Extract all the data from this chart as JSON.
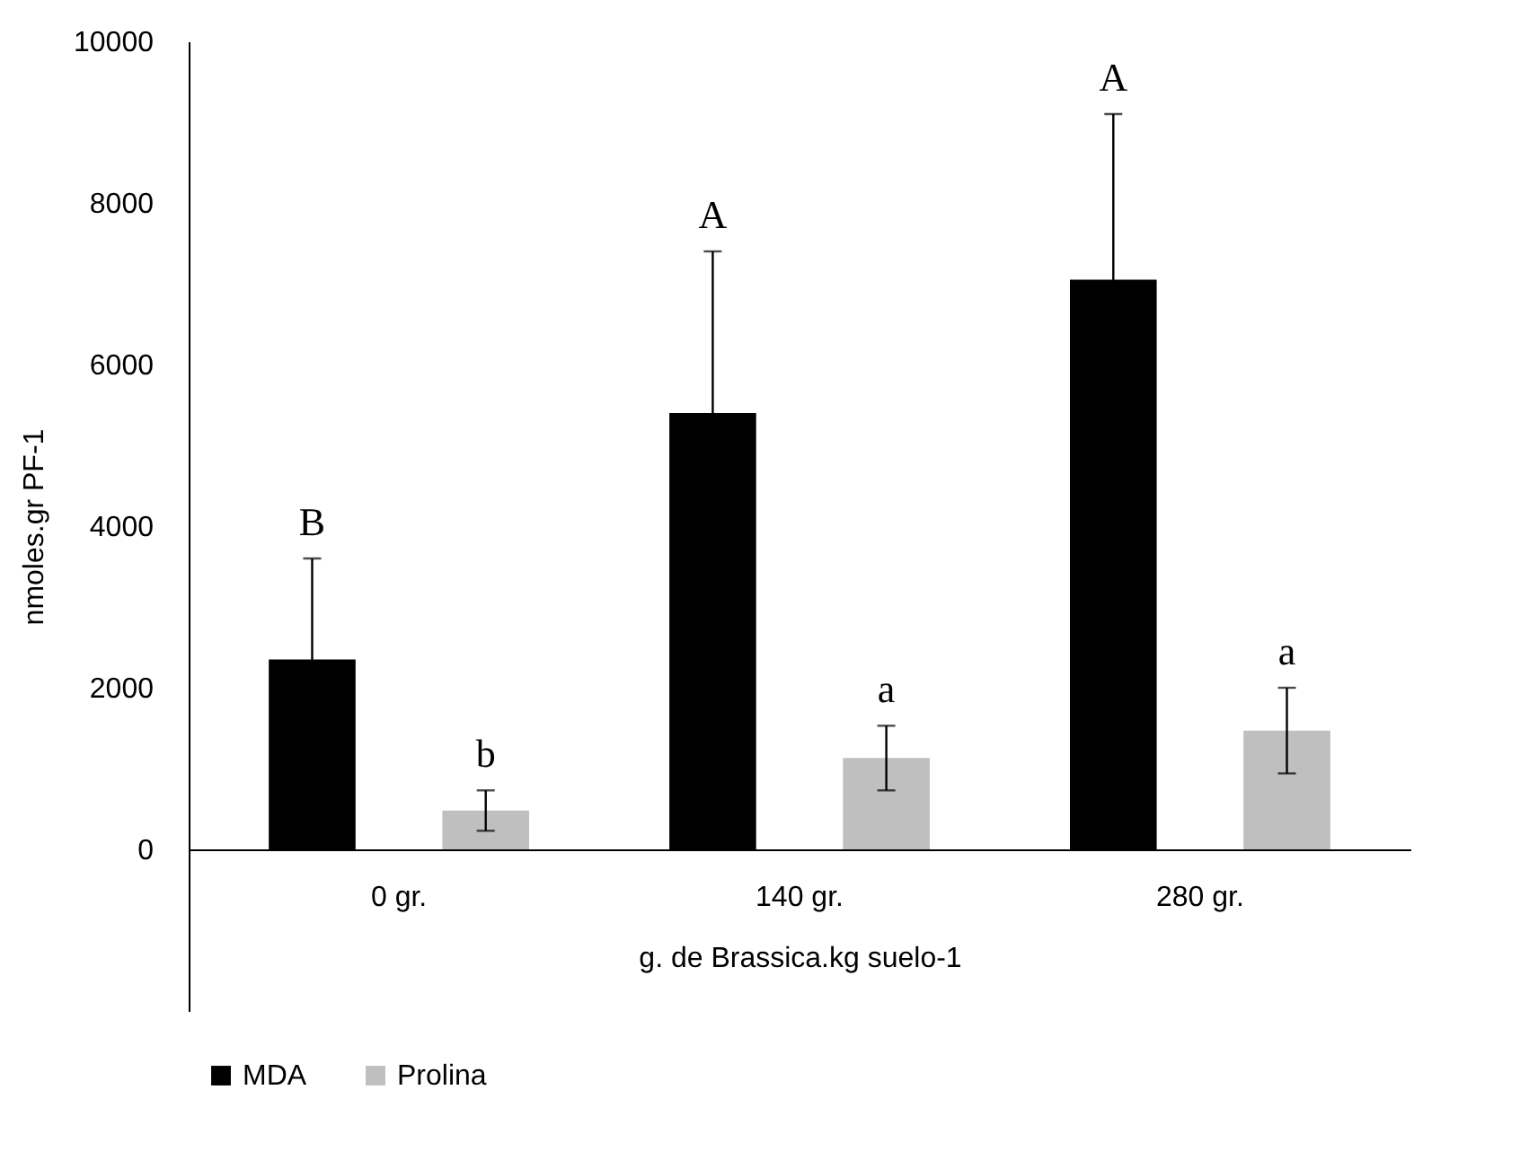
{
  "chart_data": {
    "type": "bar",
    "xlabel": "g. de Brassica.kg suelo-1",
    "ylabel": "nmoles.gr PF-1",
    "categories": [
      "0 gr.",
      "140 gr.",
      "280 gr."
    ],
    "series": [
      {
        "name": "MDA",
        "color": "#000000",
        "values": [
          2350,
          5400,
          7050
        ],
        "errors": [
          1250,
          2000,
          2050
        ]
      },
      {
        "name": "Prolina",
        "color": "#bfbfbf",
        "values": [
          480,
          1130,
          1470
        ],
        "errors": [
          250,
          400,
          530
        ]
      }
    ],
    "ylim": [
      -2000,
      10000
    ],
    "yticks": [
      0,
      2000,
      4000,
      6000,
      8000,
      10000
    ],
    "grid": false,
    "legend": "bottom",
    "annotations": [
      "B",
      "b",
      "A",
      "a",
      "A",
      "a"
    ]
  }
}
